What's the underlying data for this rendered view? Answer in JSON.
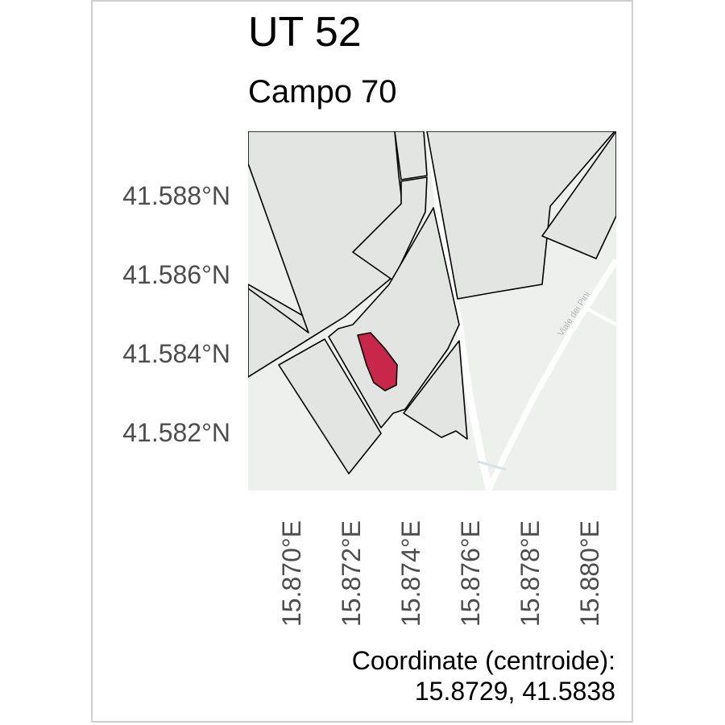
{
  "title": "UT 52",
  "subtitle": "Campo 70",
  "map": {
    "basemap_color": "#eef0ee",
    "parcel_fill": "#e3e5e3",
    "parcel_stroke": "#000000",
    "highlight_fill": "#c8264a",
    "road_color": "#ffffff",
    "road_label": "Viale dei Pini"
  },
  "axes": {
    "y_ticks": [
      "41.588°N",
      "41.586°N",
      "41.584°N",
      "41.582°N"
    ],
    "x_ticks": [
      "15.870°E",
      "15.872°E",
      "15.874°E",
      "15.876°E",
      "15.878°E",
      "15.880°E"
    ]
  },
  "caption": {
    "line1": "Coordinate (centroide):",
    "line2": "15.8729, 41.5838"
  },
  "centroid": {
    "lon": 15.8729,
    "lat": 41.5838
  }
}
